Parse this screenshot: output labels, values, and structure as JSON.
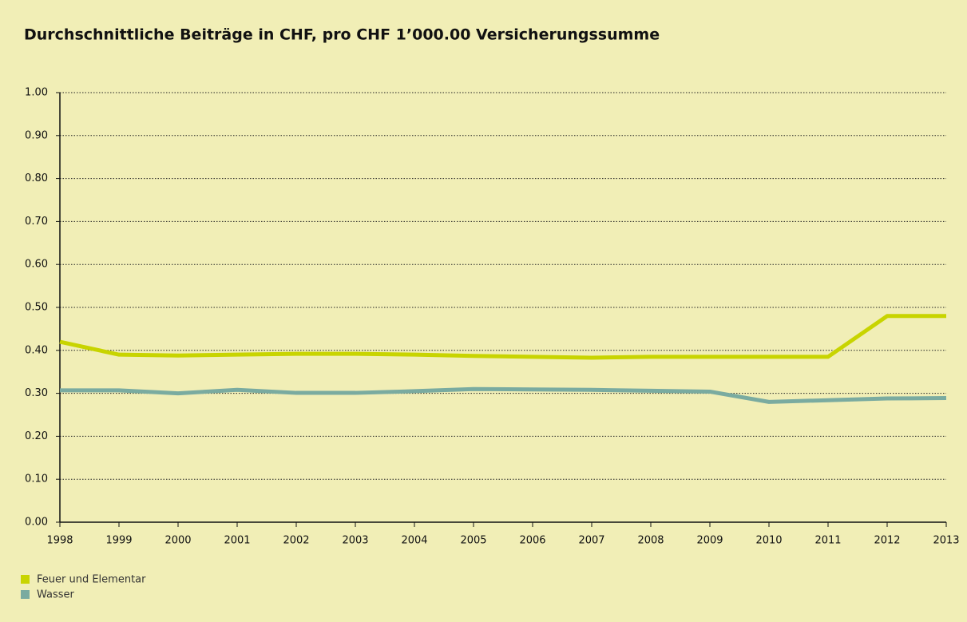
{
  "chart_data": {
    "type": "line",
    "title": "Durchschnittliche Beiträge in CHF, pro CHF 1’000.00 Versicherungssumme",
    "x": [
      1998,
      1999,
      2000,
      2001,
      2002,
      2003,
      2004,
      2005,
      2006,
      2007,
      2008,
      2009,
      2010,
      2011,
      2012,
      2013
    ],
    "series": [
      {
        "name": "Feuer und Elementar",
        "color": "#c8d400",
        "values": [
          0.42,
          0.39,
          0.388,
          0.39,
          0.392,
          0.392,
          0.39,
          0.387,
          0.385,
          0.383,
          0.385,
          0.385,
          0.385,
          0.385,
          0.48,
          0.48
        ]
      },
      {
        "name": "Wasser",
        "color": "#7aaba0",
        "values": [
          0.307,
          0.307,
          0.3,
          0.308,
          0.301,
          0.301,
          0.305,
          0.31,
          0.309,
          0.308,
          0.306,
          0.304,
          0.28,
          0.284,
          0.288,
          0.289
        ]
      }
    ],
    "xlim": [
      1998,
      2013
    ],
    "xticks": [
      1998,
      1999,
      2000,
      2001,
      2002,
      2003,
      2004,
      2005,
      2006,
      2007,
      2008,
      2009,
      2010,
      2011,
      2012,
      2013
    ],
    "ylim": [
      0,
      1
    ],
    "yticks": [
      {
        "value": 0,
        "label": "0.00"
      },
      {
        "value": 0.1,
        "label": "0.10"
      },
      {
        "value": 0.2,
        "label": "0.20"
      },
      {
        "value": 0.3,
        "label": "0.30"
      },
      {
        "value": 0.4,
        "label": "0.40"
      },
      {
        "value": 0.5,
        "label": "0.50"
      },
      {
        "value": 0.6,
        "label": "0.60"
      },
      {
        "value": 0.7,
        "label": "0.70"
      },
      {
        "value": 0.8,
        "label": "0.80"
      },
      {
        "value": 0.9,
        "label": "0.90"
      },
      {
        "value": 1,
        "label": "1.00"
      }
    ],
    "grid": true
  }
}
